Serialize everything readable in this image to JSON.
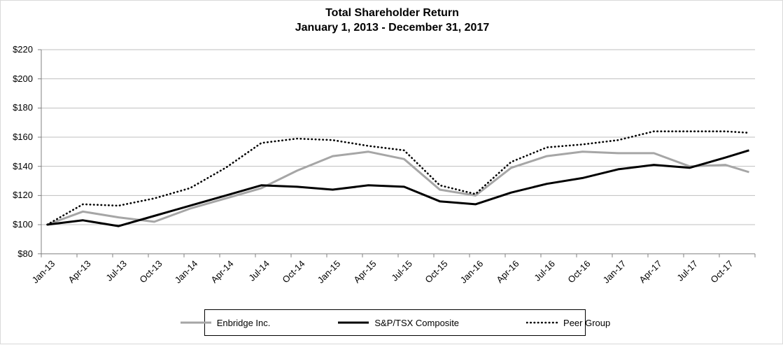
{
  "page": {
    "frame_border_color": "#d9d9d9",
    "background": "#ffffff"
  },
  "chart_data": {
    "type": "line",
    "title": "Total Shareholder Return",
    "subtitle": "January 1, 2013 - December 31, 2017",
    "grid": "horizontal",
    "legend_position": "bottom",
    "ylim": [
      80,
      220
    ],
    "y_tick_step": 20,
    "y_tick_labels": [
      "$220",
      "$200",
      "$180",
      "$160",
      "$140",
      "$120",
      "$100",
      "$80"
    ],
    "x_tick_labels": [
      "Jan-13",
      "Apr-13",
      "Jul-13",
      "Oct-13",
      "Jan-14",
      "Apr-14",
      "Jul-14",
      "Oct-14",
      "Jan-15",
      "Apr-15",
      "Jul-15",
      "Oct-15",
      "Jan-16",
      "Apr-16",
      "Jul-16",
      "Oct-16",
      "Jan-17",
      "Apr-17",
      "Jul-17",
      "Oct-17"
    ],
    "sample_labels": [
      "Jan-13",
      "Apr-13",
      "Jul-13",
      "Oct-13",
      "Jan-14",
      "Apr-14",
      "Jul-14",
      "Oct-14",
      "Jan-15",
      "Apr-15",
      "Jul-15",
      "Oct-15",
      "Jan-16",
      "Apr-16",
      "Jul-16",
      "Oct-16",
      "Jan-17",
      "Apr-17",
      "Jul-17",
      "Oct-17",
      "Dec-17"
    ],
    "colors": {
      "gridline": "#bfbfbf",
      "axis": "#808080",
      "text": "#000000"
    },
    "series": [
      {
        "name": "Enbridge Inc.",
        "color": "#a6a6a6",
        "dash": "solid",
        "values": [
          100,
          109,
          105,
          102,
          111,
          118,
          125,
          137,
          147,
          150,
          145,
          124,
          120,
          139,
          147,
          150,
          149,
          149,
          140,
          141,
          136
        ]
      },
      {
        "name": "S&P/TSX Composite",
        "color": "#000000",
        "dash": "solid",
        "values": [
          100,
          103,
          99,
          106,
          113,
          120,
          127,
          126,
          124,
          127,
          126,
          116,
          114,
          122,
          128,
          132,
          138,
          141,
          139,
          146,
          151
        ]
      },
      {
        "name": "Peer Group",
        "color": "#000000",
        "dash": "dotted",
        "values": [
          100,
          114,
          113,
          118,
          125,
          139,
          156,
          159,
          158,
          154,
          151,
          127,
          121,
          143,
          153,
          155,
          158,
          164,
          164,
          164,
          163
        ]
      }
    ]
  }
}
